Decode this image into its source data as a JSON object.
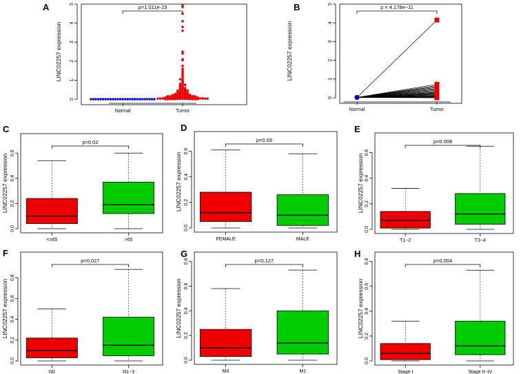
{
  "chart_data": [
    {
      "panel": "A",
      "type": "scatter",
      "ylabel": "LINC02257 expression",
      "categories": [
        "Normal",
        "Tumor"
      ],
      "ylim": [
        0,
        5
      ],
      "yticks": [
        0,
        1,
        2,
        3,
        4,
        5
      ],
      "pvalue": "p=1.011e-15",
      "series": [
        {
          "name": "Normal",
          "color": "#0000cc",
          "values": [
            0,
            0,
            0,
            0,
            0,
            0,
            0,
            0,
            0,
            0,
            0,
            0,
            0,
            0,
            0,
            0,
            0,
            0,
            0,
            0,
            0,
            0,
            0,
            0,
            0,
            0,
            0
          ]
        },
        {
          "name": "Tumor",
          "color": "#ee0000",
          "values": [
            4.95,
            4.85,
            4.5,
            4.1,
            3.8,
            3.6,
            2.5,
            2.4,
            2.1,
            2.05,
            1.75,
            1.6,
            1.5,
            1.4,
            1.3,
            1.2,
            1.1,
            1.05,
            1.0,
            0.95,
            0.9,
            0.85,
            0.8,
            0.8,
            0.75,
            0.7,
            0.7,
            0.65,
            0.65,
            0.6,
            0.6,
            0.58,
            0.55,
            0.55,
            0.52,
            0.5,
            0.5,
            0.48,
            0.45,
            0.45,
            0.42,
            0.4,
            0.4,
            0.38,
            0.36,
            0.35,
            0.35,
            0.33,
            0.32,
            0.3,
            0.3,
            0.3,
            0.28,
            0.27,
            0.26,
            0.25,
            0.25,
            0.24,
            0.23,
            0.22,
            0.22,
            0.21,
            0.2,
            0.2,
            0.2,
            0.19,
            0.18,
            0.18,
            0.17,
            0.16,
            0.16,
            0.15,
            0.15,
            0.15,
            0.14,
            0.14,
            0.13,
            0.13,
            0.12,
            0.12,
            0.11,
            0.11,
            0.1,
            0.1,
            0.1,
            0.1,
            0.09,
            0.09,
            0.08,
            0.08,
            0.08,
            0.07,
            0.07,
            0.07,
            0.06,
            0.06,
            0.06,
            0.05,
            0.05,
            0.05,
            0.05,
            0.04,
            0.04,
            0.04,
            0.04,
            0.03,
            0.03,
            0.03,
            0.03,
            0.02,
            0.02,
            0.02,
            0.02,
            0.02,
            0.01,
            0.01,
            0.01,
            0.01,
            0.01,
            0.0,
            0.0,
            0.0,
            0.0
          ]
        }
      ]
    },
    {
      "panel": "B",
      "type": "line",
      "ylabel": "LINC02257 expression",
      "categories": [
        "Normal",
        "Tumor"
      ],
      "ylim": [
        0,
        5
      ],
      "yticks": [
        0,
        1,
        2,
        3,
        4,
        5
      ],
      "pvalue": "p = 4.178e−11",
      "normal_value": 0.02,
      "tumor_values": [
        4.15,
        0.72,
        0.65,
        0.6,
        0.55,
        0.5,
        0.45,
        0.4,
        0.35,
        0.3,
        0.27,
        0.24,
        0.2,
        0.17,
        0.14,
        0.11,
        0.08,
        0.06,
        0.04,
        0.02,
        0.0
      ],
      "normal_color": "#0000cc",
      "tumor_color": "#ee0000"
    },
    {
      "panel": "C",
      "type": "box",
      "ylabel": "LINC02257 expression",
      "categories": [
        "<=65",
        ">65"
      ],
      "ylim": [
        0,
        0.7
      ],
      "yticks": [
        0.0,
        0.2,
        0.4,
        0.6
      ],
      "pvalue": "p=0.02",
      "boxes": [
        {
          "min": 0.0,
          "q1": 0.04,
          "median": 0.1,
          "q3": 0.24,
          "max": 0.54,
          "color": "#ee0000"
        },
        {
          "min": 0.0,
          "q1": 0.12,
          "median": 0.19,
          "q3": 0.37,
          "max": 0.6,
          "color": "#00cc00"
        }
      ]
    },
    {
      "panel": "D",
      "type": "box",
      "ylabel": "LINC02257 expression",
      "categories": [
        "FEMALE",
        "MALE"
      ],
      "ylim": [
        0,
        0.7
      ],
      "yticks": [
        0.0,
        0.2,
        0.4,
        0.6
      ],
      "pvalue": "p=0.09",
      "boxes": [
        {
          "min": 0.0,
          "q1": 0.05,
          "median": 0.12,
          "q3": 0.28,
          "max": 0.61,
          "color": "#ee0000"
        },
        {
          "min": 0.0,
          "q1": 0.02,
          "median": 0.1,
          "q3": 0.26,
          "max": 0.58,
          "color": "#00cc00"
        }
      ]
    },
    {
      "panel": "E",
      "type": "box",
      "ylabel": "LINC02257 expression",
      "categories": [
        "T1−2",
        "T3−4"
      ],
      "ylim": [
        0,
        0.7
      ],
      "yticks": [
        0.0,
        0.2,
        0.4,
        0.6
      ],
      "pvalue": "p=0.008",
      "boxes": [
        {
          "min": 0.0,
          "q1": 0.01,
          "median": 0.07,
          "q3": 0.14,
          "max": 0.32,
          "color": "#ee0000"
        },
        {
          "min": 0.0,
          "q1": 0.04,
          "median": 0.12,
          "q3": 0.28,
          "max": 0.65,
          "color": "#00cc00"
        }
      ]
    },
    {
      "panel": "F",
      "type": "box",
      "ylabel": "LINC02257 expression",
      "categories": [
        "N0",
        "N1−3"
      ],
      "ylim": [
        0,
        0.98
      ],
      "yticks": [
        0.0,
        0.2,
        0.4,
        0.6,
        0.8
      ],
      "pvalue": "p=0.027",
      "boxes": [
        {
          "min": 0.0,
          "q1": 0.03,
          "median": 0.1,
          "q3": 0.22,
          "max": 0.5,
          "color": "#ee0000"
        },
        {
          "min": 0.0,
          "q1": 0.05,
          "median": 0.15,
          "q3": 0.42,
          "max": 0.88,
          "color": "#00cc00"
        }
      ]
    },
    {
      "panel": "G",
      "type": "box",
      "ylabel": "LINC02257 expression",
      "categories": [
        "M0",
        "M1"
      ],
      "ylim": [
        0,
        0.82
      ],
      "yticks": [
        0.0,
        0.2,
        0.4,
        0.6,
        0.8
      ],
      "pvalue": "p=0.127",
      "boxes": [
        {
          "min": 0.0,
          "q1": 0.03,
          "median": 0.1,
          "q3": 0.25,
          "max": 0.58,
          "color": "#ee0000"
        },
        {
          "min": 0.0,
          "q1": 0.05,
          "median": 0.14,
          "q3": 0.4,
          "max": 0.73,
          "color": "#00cc00"
        }
      ]
    },
    {
      "panel": "H",
      "type": "box",
      "ylabel": "LINC02257 expression",
      "categories": [
        "Stage I",
        "Stage II−IV"
      ],
      "ylim": [
        0,
        0.82
      ],
      "yticks": [
        0.0,
        0.2,
        0.4,
        0.6,
        0.8
      ],
      "pvalue": "p=0.004",
      "boxes": [
        {
          "min": 0.0,
          "q1": 0.01,
          "median": 0.06,
          "q3": 0.14,
          "max": 0.32,
          "color": "#ee0000"
        },
        {
          "min": 0.0,
          "q1": 0.05,
          "median": 0.12,
          "q3": 0.32,
          "max": 0.73,
          "color": "#00cc00"
        }
      ]
    }
  ]
}
